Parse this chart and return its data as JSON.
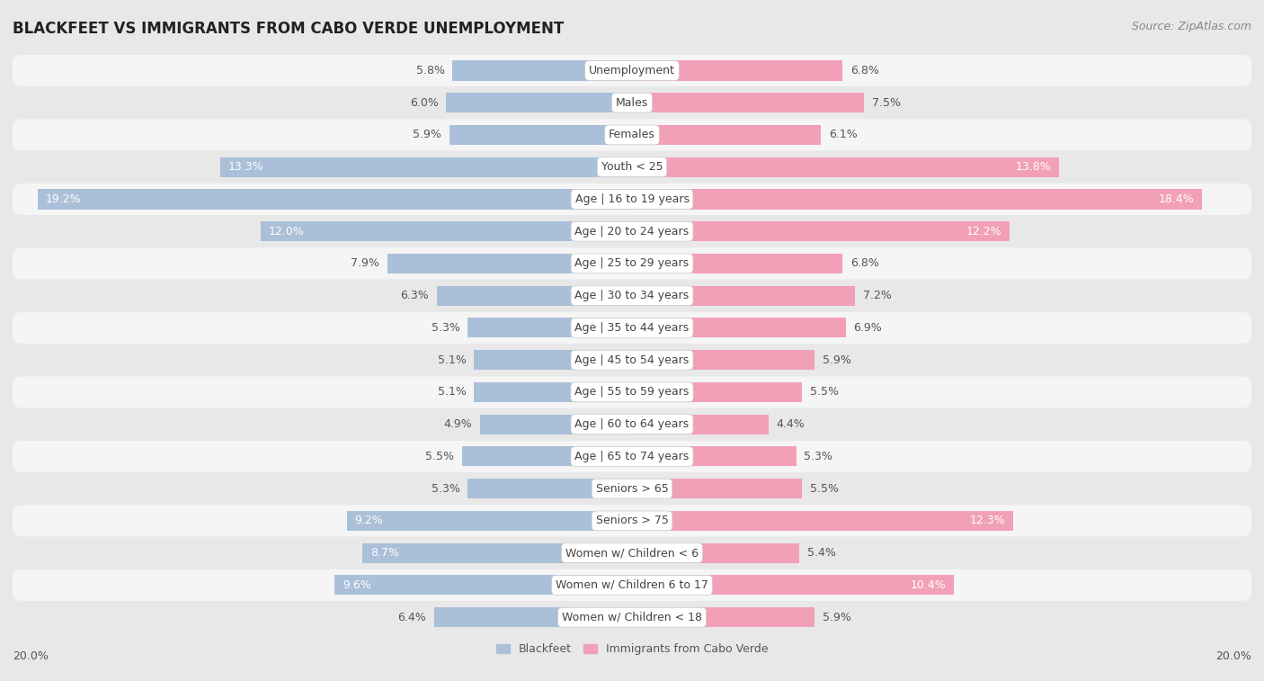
{
  "title": "BLACKFEET VS IMMIGRANTS FROM CABO VERDE UNEMPLOYMENT",
  "source": "Source: ZipAtlas.com",
  "categories": [
    "Unemployment",
    "Males",
    "Females",
    "Youth < 25",
    "Age | 16 to 19 years",
    "Age | 20 to 24 years",
    "Age | 25 to 29 years",
    "Age | 30 to 34 years",
    "Age | 35 to 44 years",
    "Age | 45 to 54 years",
    "Age | 55 to 59 years",
    "Age | 60 to 64 years",
    "Age | 65 to 74 years",
    "Seniors > 65",
    "Seniors > 75",
    "Women w/ Children < 6",
    "Women w/ Children 6 to 17",
    "Women w/ Children < 18"
  ],
  "left_values": [
    5.8,
    6.0,
    5.9,
    13.3,
    19.2,
    12.0,
    7.9,
    6.3,
    5.3,
    5.1,
    5.1,
    4.9,
    5.5,
    5.3,
    9.2,
    8.7,
    9.6,
    6.4
  ],
  "right_values": [
    6.8,
    7.5,
    6.1,
    13.8,
    18.4,
    12.2,
    6.8,
    7.2,
    6.9,
    5.9,
    5.5,
    4.4,
    5.3,
    5.5,
    12.3,
    5.4,
    10.4,
    5.9
  ],
  "left_color": "#aabfd8",
  "right_color": "#f2a0b8",
  "bar_height": 0.62,
  "xlim": 20.0,
  "legend_left": "Blackfeet",
  "legend_right": "Immigrants from Cabo Verde",
  "fig_bg": "#e8e8e8",
  "row_color_odd": "#f5f5f5",
  "row_color_even": "#e8e8e8",
  "title_fontsize": 12,
  "source_fontsize": 9,
  "value_fontsize": 9,
  "category_fontsize": 9,
  "axis_label_fontsize": 9,
  "white_text_threshold": 8.0
}
